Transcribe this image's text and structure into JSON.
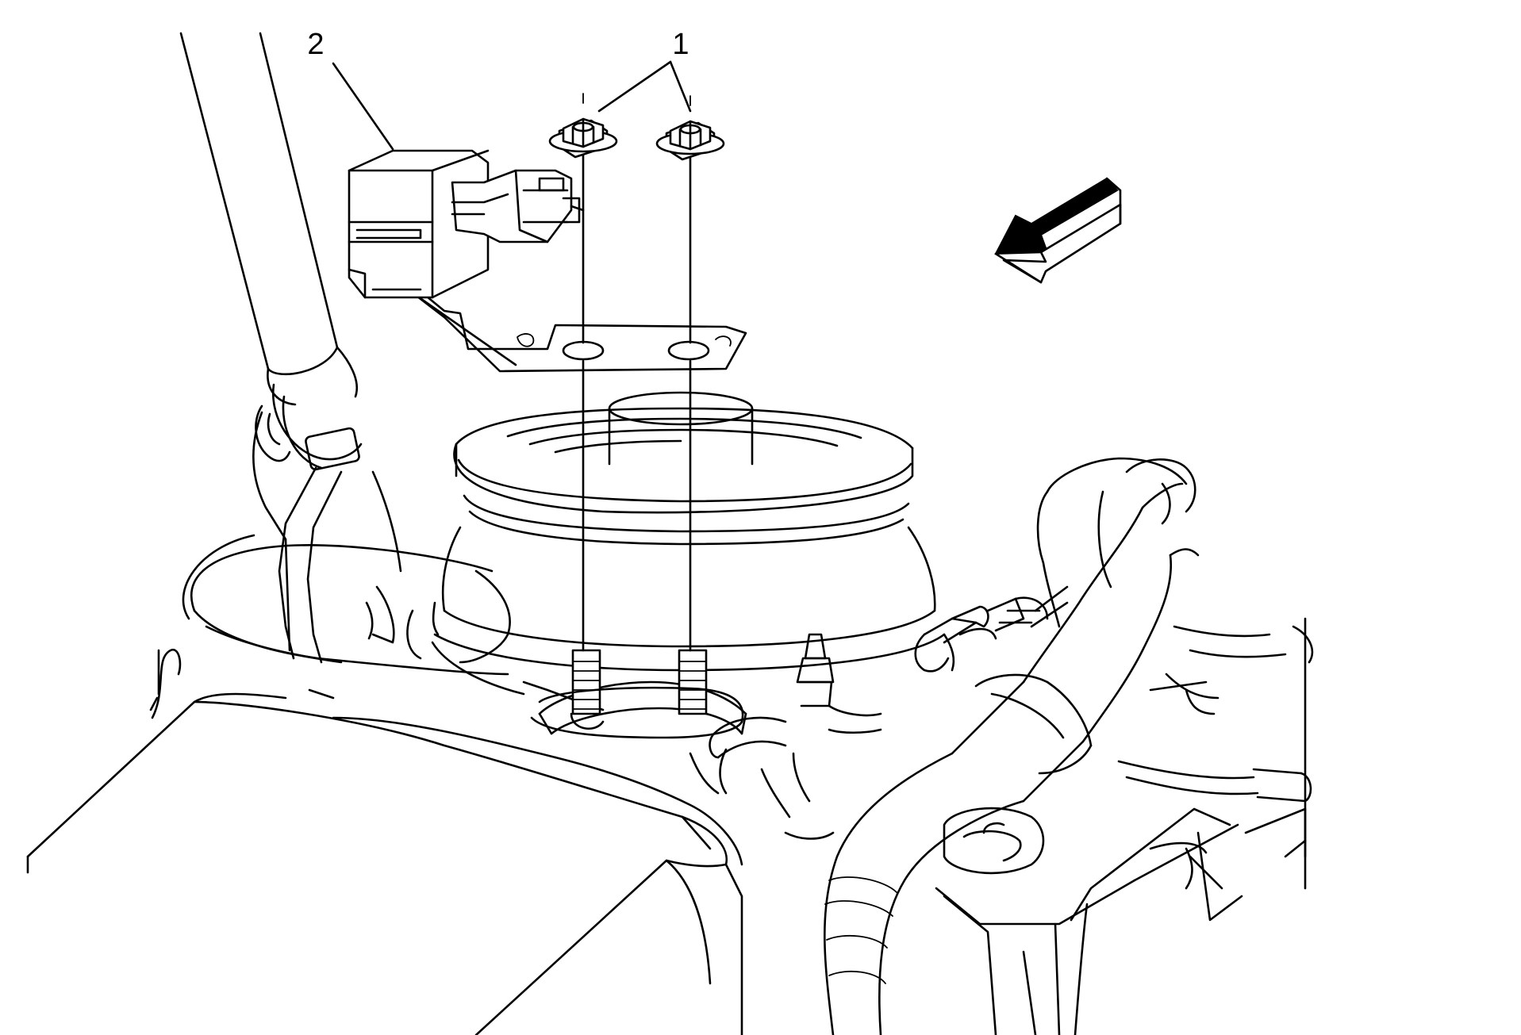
{
  "callouts": [
    {
      "number": "1"
    },
    {
      "number": "2"
    }
  ],
  "colors": {
    "line": "#000000",
    "background": "#ffffff"
  },
  "icons": {
    "direction_arrow": "front-of-vehicle-arrow-icon"
  }
}
